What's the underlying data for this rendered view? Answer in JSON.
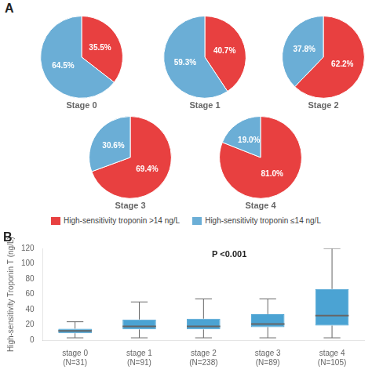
{
  "chart_data": [
    {
      "type": "pie",
      "title": "Stage 0",
      "annotations": [
        "A"
      ],
      "legend": "bottom",
      "categories": [
        "High-sensitivity troponin >14 ng/L",
        "High-sensitivity troponin ≤14 ng/L"
      ],
      "values": [
        35.5,
        64.5
      ],
      "value_labels": [
        "35.5%",
        "64.5%"
      ],
      "colors": [
        "#E84040",
        "#6BAED6"
      ],
      "data_labels": true
    },
    {
      "type": "pie",
      "title": "Stage 1",
      "categories": [
        "High-sensitivity troponin >14 ng/L",
        "High-sensitivity troponin ≤14 ng/L"
      ],
      "values": [
        40.7,
        59.3
      ],
      "value_labels": [
        "40.7%",
        "59.3%"
      ],
      "colors": [
        "#E84040",
        "#6BAED6"
      ],
      "data_labels": true
    },
    {
      "type": "pie",
      "title": "Stage 2",
      "categories": [
        "High-sensitivity troponin >14 ng/L",
        "High-sensitivity troponin ≤14 ng/L"
      ],
      "values": [
        62.2,
        37.8
      ],
      "value_labels": [
        "62.2%",
        "37.8%"
      ],
      "colors": [
        "#E84040",
        "#6BAED6"
      ],
      "data_labels": true
    },
    {
      "type": "pie",
      "title": "Stage 3",
      "categories": [
        "High-sensitivity troponin >14 ng/L",
        "High-sensitivity troponin ≤14 ng/L"
      ],
      "values": [
        69.4,
        30.6
      ],
      "value_labels": [
        "69.4%",
        "30.6%"
      ],
      "colors": [
        "#E84040",
        "#6BAED6"
      ],
      "data_labels": true
    },
    {
      "type": "pie",
      "title": "Stage 4",
      "categories": [
        "High-sensitivity troponin >14 ng/L",
        "High-sensitivity troponin ≤14 ng/L"
      ],
      "values": [
        81.0,
        19.0
      ],
      "value_labels": [
        "81.0%",
        "19.0%"
      ],
      "colors": [
        "#E84040",
        "#6BAED6"
      ],
      "data_labels": true
    },
    {
      "type": "box",
      "title": "B",
      "annotations": [
        "P <0.001"
      ],
      "categories": [
        "stage 0\n(N=31)",
        "stage 1\n(N=91)",
        "stage 2\n(N=238)",
        "stage 3\n(N=89)",
        "stage 4\n(N=105)"
      ],
      "whislo": [
        3,
        3,
        3,
        3,
        3
      ],
      "q1": [
        9,
        14,
        14,
        17,
        19
      ],
      "med": [
        12,
        18,
        18,
        21,
        32
      ],
      "q3": [
        15,
        27,
        28,
        34,
        67
      ],
      "whishi": [
        24,
        50,
        54,
        54,
        120
      ],
      "color": "#4BA3D3",
      "ylabel": "High-sensitivity Troponin T (ng/L)",
      "ylim": [
        0,
        120
      ],
      "yticks": [
        0,
        20,
        40,
        60,
        80,
        100,
        120
      ],
      "grid": false
    }
  ]
}
